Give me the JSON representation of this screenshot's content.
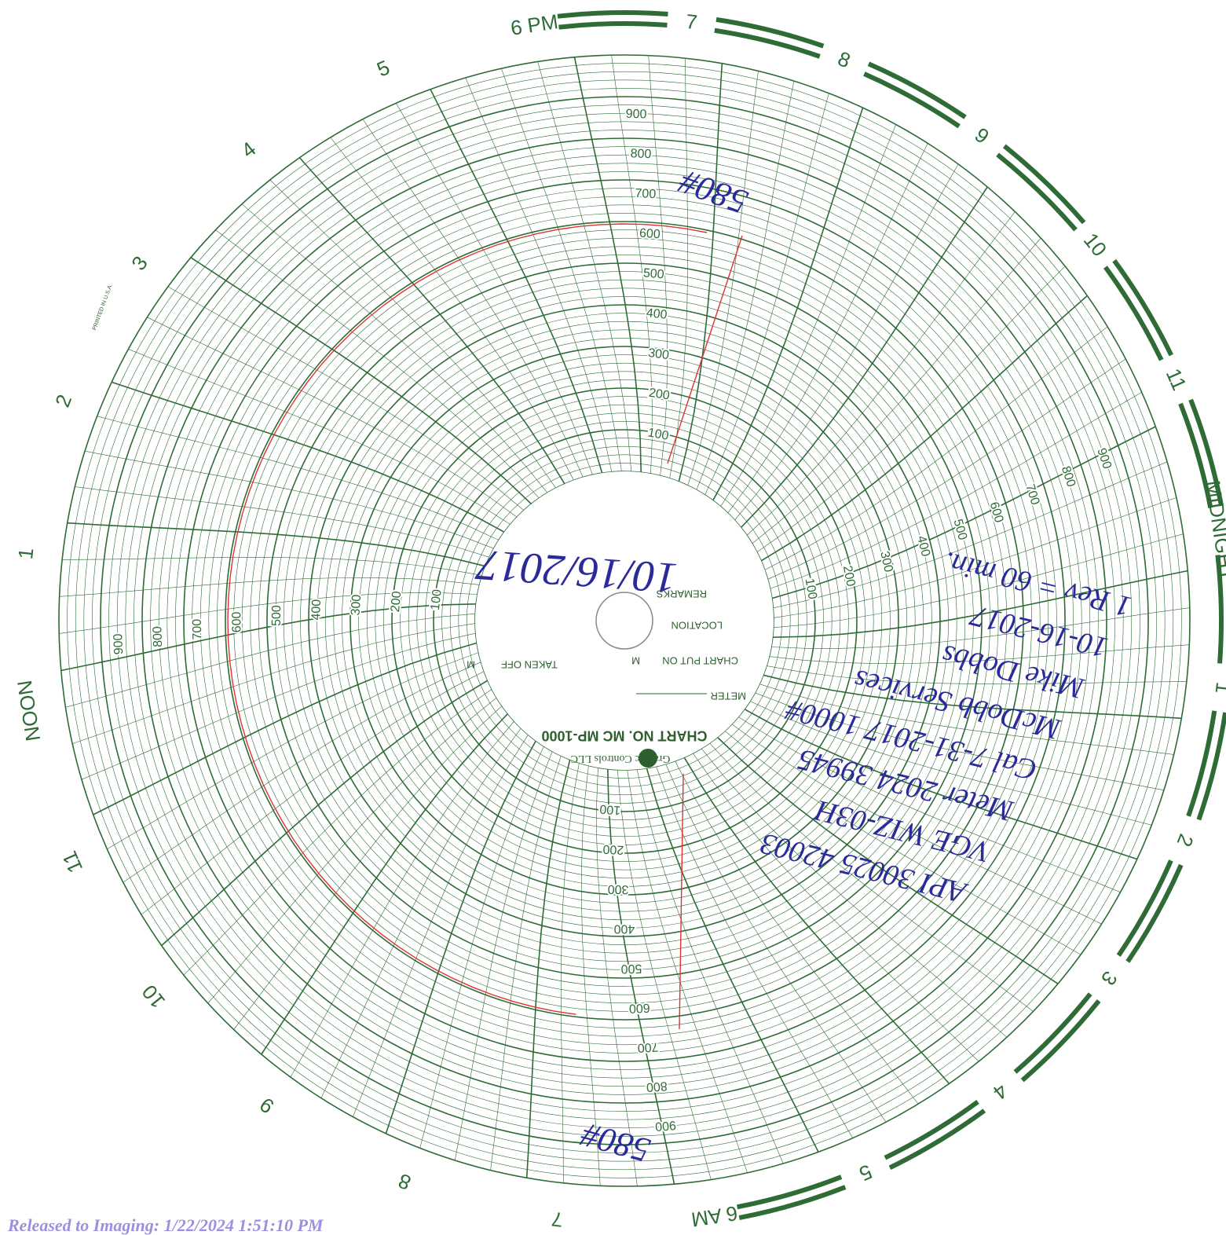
{
  "hour_labels": [
    "6 PM",
    "7",
    "8",
    "9",
    "10",
    "11",
    "MIDNIGHT",
    "1",
    "2",
    "3",
    "4",
    "5",
    "6 AM",
    "7",
    "8",
    "9",
    "10",
    "11",
    "NOON",
    "1",
    "2",
    "3",
    "4",
    "5"
  ],
  "scale_labels": [
    "100",
    "200",
    "300",
    "400",
    "500",
    "600",
    "700",
    "800",
    "900"
  ],
  "center": {
    "chart_no": "CHART NO. MC MP-1000",
    "meter": "METER",
    "chart_put_on": "CHART PUT ON",
    "location": "LOCATION",
    "remarks": "REMARKS",
    "taken_off": "TAKEN OFF",
    "m": "M",
    "maker": "Graphic Controls LLC"
  },
  "printed": "PRINTED IN U.S.A.",
  "handwritten": {
    "date": "10/16/2017",
    "pressure_top": "580#",
    "pressure_bottom": "580#",
    "notes": [
      "1 Rev = 60 min.",
      "10-16-2017",
      "Mike Dobbs",
      "McDobb Services",
      "Cal 7-31-2017 1000#",
      "Meter 2024 39945",
      "VGE WIZ-03H",
      "API 30025 42003"
    ]
  },
  "footer": "Released to Imaging: 1/22/2024 1:51:10 PM"
}
